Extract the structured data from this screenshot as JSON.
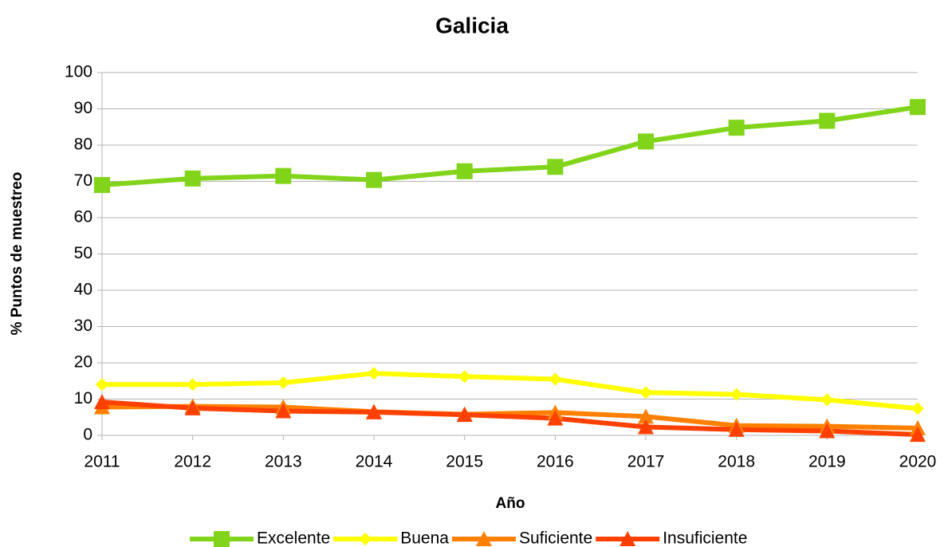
{
  "chart_data": {
    "type": "line",
    "title": "Galicia",
    "x_label": "Año",
    "y_label": "% Puntos de muestreo",
    "categories": [
      "2011",
      "2012",
      "2013",
      "2014",
      "2015",
      "2016",
      "2017",
      "2018",
      "2019",
      "2020"
    ],
    "series": [
      {
        "name": "Excelente",
        "color": "#81d41a",
        "marker": "square",
        "values": [
          69,
          70.8,
          71.5,
          70.4,
          72.8,
          74,
          81,
          84.8,
          86.7,
          90.5
        ]
      },
      {
        "name": "Buena",
        "color": "#ffff00",
        "marker": "diamond",
        "values": [
          14,
          14,
          14.5,
          17.1,
          16.2,
          15.5,
          11.8,
          11.3,
          9.8,
          7.4
        ]
      },
      {
        "name": "Suficiente",
        "color": "#ff8000",
        "marker": "triangle",
        "values": [
          7.8,
          8,
          7.8,
          6.5,
          5.8,
          6.3,
          5.2,
          2.7,
          2.5,
          2
        ]
      },
      {
        "name": "Insuficiente",
        "color": "#ff4000",
        "marker": "triangle",
        "values": [
          9.2,
          7.5,
          6.7,
          6.4,
          5.7,
          4.7,
          2.3,
          1.6,
          1.2,
          0.2
        ]
      }
    ],
    "ylim": [
      0,
      100
    ],
    "yticks": [
      0,
      10,
      20,
      30,
      40,
      50,
      60,
      70,
      80,
      90,
      100
    ],
    "grid": true,
    "legend": "bottom"
  }
}
